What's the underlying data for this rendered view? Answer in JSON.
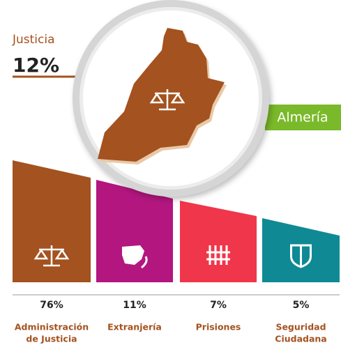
{
  "header": {
    "title": "Justicia",
    "value": "12%"
  },
  "region": "Almería",
  "items": [
    {
      "value": "76%",
      "label": [
        "Administración",
        "de Justicia"
      ],
      "color": "#a4521f"
    },
    {
      "value": "11%",
      "label": [
        "Extranjería"
      ],
      "color": "#b3167f"
    },
    {
      "value": "7%",
      "label": [
        "Prisiones"
      ],
      "color": "#f0364a"
    },
    {
      "value": "5%",
      "label": [
        "Seguridad",
        "Ciudadana"
      ],
      "color": "#0f8a94"
    }
  ]
}
